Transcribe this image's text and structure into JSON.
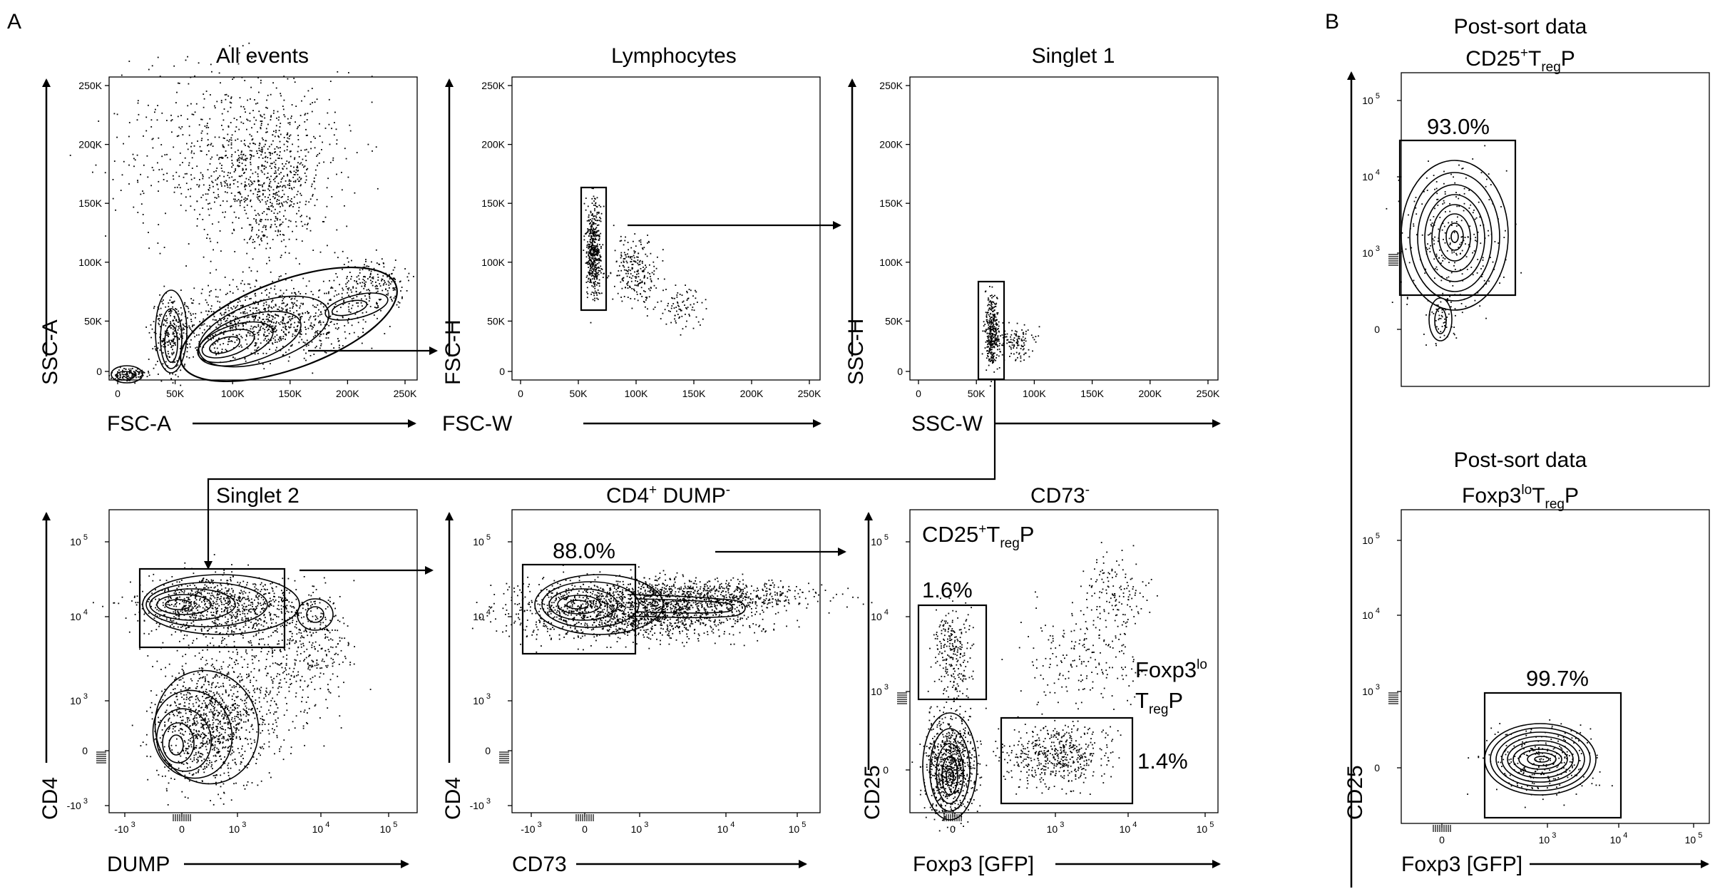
{
  "panel_labels": {
    "a": "A",
    "b": "B"
  },
  "plots": {
    "p1": {
      "title": "All events",
      "xlabel": "FSC-A",
      "ylabel": "SSC-A",
      "xticks": [
        "0",
        "50K",
        "100K",
        "150K",
        "200K",
        "250K"
      ],
      "yticks": [
        "0",
        "50K",
        "100K",
        "150K",
        "200K",
        "250K"
      ]
    },
    "p2": {
      "title": "Lymphocytes",
      "xlabel": "FSC-W",
      "ylabel": "FSC-H",
      "xticks": [
        "0",
        "50K",
        "100K",
        "150K",
        "200K",
        "250K"
      ],
      "yticks": [
        "0",
        "50K",
        "100K",
        "150K",
        "200K",
        "250K"
      ]
    },
    "p3": {
      "title": "Singlet 1",
      "xlabel": "SSC-W",
      "ylabel": "SSC-H",
      "xticks": [
        "0",
        "50K",
        "100K",
        "150K",
        "200K",
        "250K"
      ],
      "yticks": [
        "0",
        "50K",
        "100K",
        "150K",
        "200K",
        "250K"
      ]
    },
    "p4": {
      "title": "Singlet 2",
      "xlabel": "DUMP",
      "ylabel": "CD4",
      "xticks": [
        "-10",
        "0",
        "10",
        "10",
        "10"
      ],
      "xtick_exps": [
        "3",
        "",
        "3",
        "4",
        "5"
      ],
      "yticks": [
        "10",
        "10",
        "10",
        "0",
        "-10"
      ],
      "ytick_exps": [
        "5",
        "4",
        "3",
        "",
        "3"
      ]
    },
    "p5": {
      "title_main": "CD4",
      "title_sup1": "+",
      "title_mid": " DUMP",
      "title_sup2": "-",
      "xlabel": "CD73",
      "ylabel": "CD4",
      "gate_pct": "88.0%",
      "xticks": [
        "-10",
        "0",
        "10",
        "10",
        "10"
      ],
      "xtick_exps": [
        "3",
        "",
        "3",
        "4",
        "5"
      ],
      "yticks": [
        "10",
        "10",
        "10",
        "0",
        "-10"
      ],
      "ytick_exps": [
        "5",
        "4",
        "3",
        "",
        "3"
      ]
    },
    "p6": {
      "title_main": "CD73",
      "title_sup": "-",
      "xlabel": "Foxp3 [GFP]",
      "ylabel": "CD25",
      "gate1_label": "CD25",
      "gate1_sup": "+",
      "gate1_T": "T",
      "gate1_sub": "reg",
      "gate1_P": "P",
      "gate1_pct": "1.6%",
      "gate2_label": "Foxp3",
      "gate2_sup": "lo",
      "gate2_T": "T",
      "gate2_sub": "reg",
      "gate2_P": "P",
      "gate2_pct": "1.4%",
      "xticks": [
        "0",
        "10",
        "10",
        "10"
      ],
      "xtick_exps": [
        "",
        "3",
        "4",
        "5"
      ],
      "yticks": [
        "10",
        "10",
        "10",
        "0"
      ],
      "ytick_exps": [
        "5",
        "4",
        "3",
        ""
      ]
    },
    "b1": {
      "title1": "Post-sort data",
      "title2_main": "CD25",
      "title2_sup": "+",
      "title2_T": "T",
      "title2_sub": "reg",
      "title2_P": "P",
      "gate_pct": "93.0%",
      "yticks": [
        "10",
        "10",
        "10",
        "0"
      ],
      "ytick_exps": [
        "5",
        "4",
        "3",
        ""
      ]
    },
    "b2": {
      "title1": "Post-sort data",
      "title2_main": "Foxp3",
      "title2_sup": "lo",
      "title2_T": "T",
      "title2_sub": "reg",
      "title2_P": "P",
      "gate_pct": "99.7%",
      "xlabel": "Foxp3 [GFP]",
      "ylabel": "CD25",
      "xticks": [
        "0",
        "10",
        "10",
        "10"
      ],
      "xtick_exps": [
        "",
        "3",
        "4",
        "5"
      ],
      "yticks": [
        "10",
        "10",
        "10",
        "0"
      ],
      "ytick_exps": [
        "5",
        "4",
        "3",
        ""
      ]
    }
  }
}
